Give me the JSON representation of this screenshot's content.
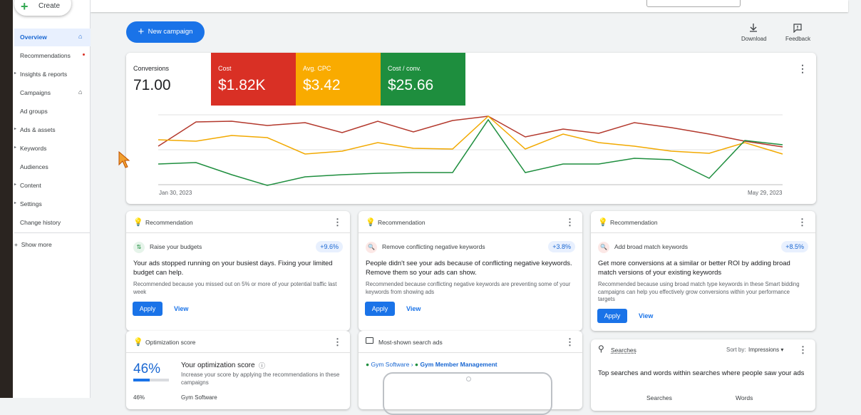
{
  "sidebar": {
    "create": "Create",
    "items": [
      "Overview",
      "Recommendations",
      "Insights & reports",
      "Campaigns",
      "Ad groups",
      "Ads & assets",
      "Keywords",
      "Audiences",
      "Content",
      "Settings",
      "Change history"
    ],
    "show_more": "Show more"
  },
  "toolbar": {
    "new_campaign": "New campaign",
    "download": "Download",
    "feedback": "Feedback"
  },
  "metrics": [
    {
      "label": "Conversions",
      "value": "71.00"
    },
    {
      "label": "Cost",
      "value": "$1.82K"
    },
    {
      "label": "Avg. CPC",
      "value": "$3.42"
    },
    {
      "label": "Cost / conv.",
      "value": "$25.66"
    }
  ],
  "chart": {
    "start": "Jan 30, 2023",
    "end": "May 29, 2023"
  },
  "recommendations": [
    {
      "header": "Recommendation",
      "title": "Raise your budgets",
      "uplift": "+9.6%",
      "headline": "Your ads stopped running on your busiest days. Fixing your limited budget can help.",
      "reason": "Recommended because you missed out on 5% or more of your potential traffic last week",
      "apply": "Apply",
      "view": "View"
    },
    {
      "header": "Recommendation",
      "title": "Remove conflicting negative keywords",
      "uplift": "+3.8%",
      "headline": "People didn't see your ads because of conflicting negative keywords. Remove them so your ads can show.",
      "reason": "Recommended because conflicting negative keywords are preventing some of your keywords from showing ads",
      "apply": "Apply",
      "view": "View"
    },
    {
      "header": "Recommendation",
      "title": "Add broad match keywords",
      "uplift": "+8.5%",
      "headline": "Get more conversions at a similar or better ROI by adding broad match versions of your existing keywords",
      "reason": "Recommended because using broad match type keywords in these Smart bidding campaigns can help you effectively grow conversions within your performance targets",
      "apply": "Apply",
      "view": "View"
    }
  ],
  "optimization": {
    "header": "Optimization score",
    "score": "46%",
    "title": "Your optimization score",
    "desc": "Increase your score by applying the recommendations in these campaigns",
    "row_score": "46%",
    "row_name": "Gym Software"
  },
  "search_ads": {
    "header": "Most-shown search ads",
    "campaign": "Gym Software",
    "ad_group": "Gym Member Management"
  },
  "searches": {
    "header": "Searches",
    "sort_label": "Sort by:",
    "sort_value": "Impressions",
    "desc": "Top searches and words within searches where people saw your ads",
    "col1": "Searches",
    "col2": "Words"
  }
}
